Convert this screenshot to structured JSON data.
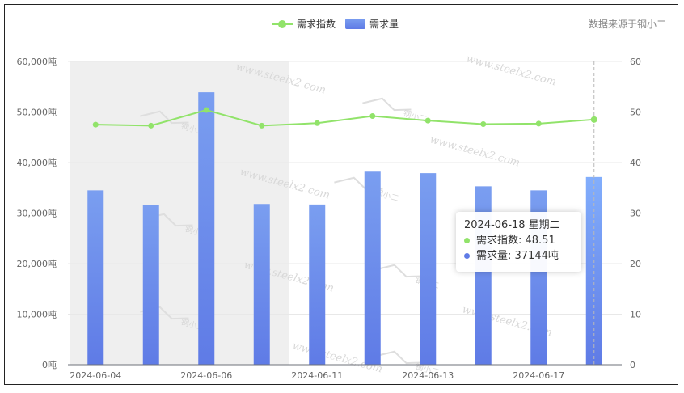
{
  "legend": {
    "line_label": "需求指数",
    "bar_label": "需求量"
  },
  "source_note": "数据来源于钢小二",
  "watermark": {
    "text": "www.steelx2.com",
    "logo_text": "钢小二"
  },
  "tooltip": {
    "title": "2024-06-18 星期二",
    "line_row": "需求指数: 48.51",
    "bar_row": "需求量: 37144吨"
  },
  "colors": {
    "line": "#91e36a",
    "bar_top": "#7a9ef0",
    "bar_bottom": "#5f7be6",
    "bar_highlight_top": "#82aefc",
    "band": "#efefef",
    "grid": "#e8e8e8",
    "axis_text": "#666666"
  },
  "chart_data": {
    "type": "bar",
    "dates": [
      "2024-06-04",
      "2024-06-05",
      "2024-06-06",
      "2024-06-07",
      "2024-06-11",
      "2024-06-12",
      "2024-06-13",
      "2024-06-14",
      "2024-06-17",
      "2024-06-18"
    ],
    "x_tick_labels": [
      "2024-06-04",
      "2024-06-06",
      "2024-06-11",
      "2024-06-13",
      "2024-06-17"
    ],
    "series": [
      {
        "name": "需求量",
        "type": "bar",
        "axis": "left",
        "values": [
          34500,
          31600,
          53900,
          31800,
          31700,
          38200,
          37900,
          35300,
          34500,
          37144
        ]
      },
      {
        "name": "需求指数",
        "type": "line",
        "axis": "right",
        "values": [
          47.5,
          47.3,
          50.4,
          47.3,
          47.8,
          49.2,
          48.3,
          47.6,
          47.7,
          48.51
        ]
      }
    ],
    "y_left": {
      "min": 0,
      "max": 60000,
      "ticks": [
        "0吨",
        "10,000吨",
        "20,000吨",
        "30,000吨",
        "40,000吨",
        "50,000吨",
        "60,000吨"
      ]
    },
    "y_right": {
      "min": 0,
      "max": 60,
      "ticks": [
        "0",
        "10",
        "20",
        "30",
        "40",
        "50",
        "60"
      ]
    },
    "shaded_band": {
      "from": "2024-06-04",
      "to": "2024-06-07"
    },
    "highlighted": "2024-06-18",
    "grid": true,
    "legend_position": "top-center"
  }
}
